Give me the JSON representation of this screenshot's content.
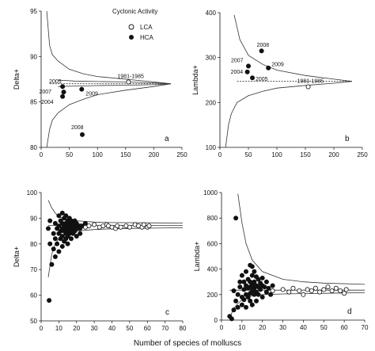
{
  "figure": {
    "xlabel": "Number of species of molluscs",
    "legend": {
      "title": "Cyclonic Activity",
      "entries": [
        {
          "label": "LCA",
          "marker": "open-circle"
        },
        {
          "label": "HCA",
          "marker": "filled-circle"
        }
      ]
    }
  },
  "chart_data": [
    {
      "panel": "a",
      "type": "scatter",
      "ylabel": "Delta+",
      "xlim": [
        0,
        250
      ],
      "ylim": [
        80,
        95
      ],
      "xticks": [
        0,
        50,
        100,
        150,
        200,
        250
      ],
      "yticks": [
        80,
        85,
        90,
        95
      ],
      "mean_line": 87.0,
      "funnel": {
        "upper": [
          [
            10,
            95
          ],
          [
            15,
            91.2
          ],
          [
            20,
            90.2
          ],
          [
            30,
            89.5
          ],
          [
            50,
            88.6
          ],
          [
            75,
            88.1
          ],
          [
            100,
            87.8
          ],
          [
            150,
            87.5
          ],
          [
            200,
            87.2
          ],
          [
            230,
            87.0
          ]
        ],
        "lower": [
          [
            10,
            80
          ],
          [
            15,
            82.0
          ],
          [
            20,
            83.0
          ],
          [
            30,
            83.8
          ],
          [
            50,
            84.7
          ],
          [
            75,
            85.3
          ],
          [
            100,
            85.8
          ],
          [
            150,
            86.3
          ],
          [
            200,
            86.7
          ],
          [
            230,
            87.0
          ]
        ],
        "upper_inner": [
          [
            30,
            87.4
          ],
          [
            60,
            87.3
          ],
          [
            100,
            87.25
          ],
          [
            150,
            87.2
          ],
          [
            200,
            87.1
          ],
          [
            230,
            87.0
          ]
        ],
        "lower_inner": [
          [
            30,
            86.7
          ],
          [
            60,
            86.75
          ],
          [
            100,
            86.8
          ],
          [
            150,
            86.85
          ],
          [
            200,
            86.9
          ],
          [
            230,
            87.0
          ]
        ]
      },
      "series": [
        {
          "name": "HCA",
          "points": [
            {
              "x": 38,
              "y": 86.7,
              "label": "2005"
            },
            {
              "x": 40,
              "y": 86.1,
              "label": "2007"
            },
            {
              "x": 38,
              "y": 85.6,
              "label": "2004"
            },
            {
              "x": 72,
              "y": 86.4,
              "label": "2009"
            },
            {
              "x": 73,
              "y": 81.4,
              "label": "2008"
            }
          ]
        },
        {
          "name": "LCA",
          "points": [
            {
              "x": 155,
              "y": 87.2,
              "label": "1981-1985"
            }
          ]
        }
      ]
    },
    {
      "panel": "b",
      "type": "scatter",
      "ylabel": "Lambda+",
      "xlim": [
        0,
        250
      ],
      "ylim": [
        100,
        400
      ],
      "xticks": [
        0,
        50,
        100,
        150,
        200,
        250
      ],
      "yticks": [
        100,
        200,
        300,
        400
      ],
      "mean_line": 247,
      "funnel": {
        "upper": [
          [
            25,
            395
          ],
          [
            35,
            340
          ],
          [
            50,
            305
          ],
          [
            75,
            285
          ],
          [
            100,
            272
          ],
          [
            150,
            260
          ],
          [
            200,
            252
          ],
          [
            232,
            247
          ]
        ],
        "lower": [
          [
            10,
            100
          ],
          [
            15,
            150
          ],
          [
            20,
            175
          ],
          [
            30,
            200
          ],
          [
            50,
            215
          ],
          [
            75,
            225
          ],
          [
            100,
            232
          ],
          [
            150,
            238
          ],
          [
            200,
            243
          ],
          [
            232,
            247
          ]
        ]
      },
      "series": [
        {
          "name": "HCA",
          "points": [
            {
              "x": 73,
              "y": 315,
              "label": "2008"
            },
            {
              "x": 50,
              "y": 281,
              "label": "2007"
            },
            {
              "x": 85,
              "y": 277,
              "label": "2009"
            },
            {
              "x": 48,
              "y": 268,
              "label": "2004"
            },
            {
              "x": 57,
              "y": 255,
              "label": "2005"
            }
          ]
        },
        {
          "name": "LCA",
          "points": [
            {
              "x": 155,
              "y": 235,
              "label": "1981-1985"
            }
          ]
        }
      ]
    },
    {
      "panel": "c",
      "type": "scatter",
      "ylabel": "Delta+",
      "xlim": [
        0,
        80
      ],
      "ylim": [
        50,
        100
      ],
      "xticks": [
        0,
        10,
        20,
        30,
        40,
        50,
        60,
        70,
        80
      ],
      "yticks": [
        50,
        60,
        70,
        80,
        90,
        100
      ],
      "funnel": {
        "upper": [
          [
            4,
            97
          ],
          [
            6,
            94
          ],
          [
            8,
            92
          ],
          [
            10,
            90.5
          ],
          [
            15,
            89.5
          ],
          [
            20,
            89
          ],
          [
            30,
            88.5
          ],
          [
            40,
            88.3
          ],
          [
            60,
            88.2
          ],
          [
            80,
            88.1
          ]
        ],
        "lower": [
          [
            4,
            67
          ],
          [
            6,
            76
          ],
          [
            8,
            80
          ],
          [
            10,
            82
          ],
          [
            15,
            84
          ],
          [
            20,
            85
          ],
          [
            30,
            85.6
          ],
          [
            40,
            85.9
          ],
          [
            60,
            86.1
          ],
          [
            80,
            86.3
          ]
        ],
        "mean": [
          [
            4,
            87.2
          ],
          [
            80,
            87.2
          ]
        ]
      },
      "series": [
        {
          "name": "LCA",
          "points": [
            [
              20,
              86
            ],
            [
              22,
              87
            ],
            [
              25,
              86.5
            ],
            [
              27,
              87
            ],
            [
              30,
              87.5
            ],
            [
              33,
              86.5
            ],
            [
              35,
              87
            ],
            [
              37,
              87.5
            ],
            [
              38,
              87
            ],
            [
              40,
              86.5
            ],
            [
              42,
              86
            ],
            [
              43,
              87
            ],
            [
              45,
              86.5
            ],
            [
              48,
              87
            ],
            [
              50,
              86.5
            ],
            [
              53,
              87.5
            ],
            [
              55,
              87
            ],
            [
              57,
              86.5
            ],
            [
              58,
              87.5
            ],
            [
              60,
              86.5
            ],
            [
              61,
              87
            ]
          ]
        },
        {
          "name": "HCA",
          "points": [
            [
              4,
              86
            ],
            [
              4.5,
              58
            ],
            [
              5,
              89
            ],
            [
              5,
              80
            ],
            [
              6,
              72
            ],
            [
              7,
              84
            ],
            [
              7,
              78
            ],
            [
              8,
              88
            ],
            [
              8,
              82
            ],
            [
              8,
              75
            ],
            [
              9,
              86
            ],
            [
              9,
              80
            ],
            [
              10,
              91
            ],
            [
              10,
              87
            ],
            [
              10,
              84
            ],
            [
              10,
              77
            ],
            [
              11,
              89
            ],
            [
              11,
              85
            ],
            [
              11,
              82
            ],
            [
              12,
              92
            ],
            [
              12,
              88
            ],
            [
              12,
              86
            ],
            [
              12,
              83
            ],
            [
              12,
              79
            ],
            [
              13,
              90
            ],
            [
              13,
              87
            ],
            [
              13,
              85
            ],
            [
              13,
              81
            ],
            [
              14,
              91
            ],
            [
              14,
              88
            ],
            [
              14,
              86
            ],
            [
              14,
              84
            ],
            [
              14,
              82
            ],
            [
              15,
              89
            ],
            [
              15,
              87
            ],
            [
              15,
              85
            ],
            [
              15,
              83
            ],
            [
              15,
              80
            ],
            [
              16,
              90
            ],
            [
              16,
              88
            ],
            [
              16,
              86
            ],
            [
              16,
              84
            ],
            [
              17,
              89
            ],
            [
              17,
              87
            ],
            [
              17,
              85
            ],
            [
              17,
              82
            ],
            [
              18,
              88
            ],
            [
              18,
              86
            ],
            [
              18,
              84
            ],
            [
              19,
              89
            ],
            [
              19,
              87
            ],
            [
              19,
              85
            ],
            [
              20,
              88
            ],
            [
              20,
              86
            ],
            [
              20,
              83
            ],
            [
              21,
              87
            ],
            [
              22,
              86
            ],
            [
              22,
              84
            ],
            [
              23,
              87
            ],
            [
              25,
              88
            ]
          ]
        }
      ]
    },
    {
      "panel": "d",
      "type": "scatter",
      "ylabel": "Lambda+",
      "xlim": [
        0,
        70
      ],
      "ylim": [
        0,
        1000
      ],
      "xticks": [
        0,
        10,
        20,
        30,
        40,
        50,
        60,
        70
      ],
      "yticks": [
        0,
        200,
        400,
        600,
        800,
        1000
      ],
      "funnel": {
        "upper": [
          [
            8,
            990
          ],
          [
            10,
            760
          ],
          [
            12,
            600
          ],
          [
            15,
            470
          ],
          [
            20,
            380
          ],
          [
            30,
            320
          ],
          [
            40,
            300
          ],
          [
            50,
            290
          ],
          [
            70,
            280
          ]
        ],
        "lower": [
          [
            4,
            20
          ],
          [
            6,
            90
          ],
          [
            8,
            130
          ],
          [
            10,
            160
          ],
          [
            15,
            190
          ],
          [
            20,
            200
          ],
          [
            30,
            205
          ],
          [
            50,
            210
          ],
          [
            70,
            215
          ]
        ],
        "mean": [
          [
            4,
            235
          ],
          [
            70,
            235
          ]
        ]
      },
      "series": [
        {
          "name": "LCA",
          "points": [
            [
              25,
              230
            ],
            [
              30,
              240
            ],
            [
              33,
              220
            ],
            [
              35,
              250
            ],
            [
              38,
              230
            ],
            [
              40,
              200
            ],
            [
              42,
              240
            ],
            [
              44,
              230
            ],
            [
              46,
              250
            ],
            [
              48,
              220
            ],
            [
              50,
              240
            ],
            [
              52,
              260
            ],
            [
              54,
              230
            ],
            [
              56,
              250
            ],
            [
              58,
              230
            ],
            [
              60,
              210
            ],
            [
              61,
              240
            ]
          ]
        },
        {
          "name": "HCA",
          "points": [
            [
              4,
              30
            ],
            [
              5,
              10
            ],
            [
              6,
              80
            ],
            [
              6,
              230
            ],
            [
              7,
              800
            ],
            [
              7,
              150
            ],
            [
              8,
              100
            ],
            [
              8,
              200
            ],
            [
              9,
              300
            ],
            [
              9,
              260
            ],
            [
              10,
              180
            ],
            [
              10,
              120
            ],
            [
              10,
              350
            ],
            [
              11,
              240
            ],
            [
              11,
              300
            ],
            [
              11,
              160
            ],
            [
              12,
              270
            ],
            [
              12,
              200
            ],
            [
              12,
              380
            ],
            [
              12,
              100
            ],
            [
              13,
              320
            ],
            [
              13,
              250
            ],
            [
              13,
              180
            ],
            [
              14,
              430
            ],
            [
              14,
              300
            ],
            [
              14,
              260
            ],
            [
              14,
              210
            ],
            [
              14,
              150
            ],
            [
              15,
              420
            ],
            [
              15,
              350
            ],
            [
              15,
              280
            ],
            [
              15,
              230
            ],
            [
              15,
              120
            ],
            [
              16,
              380
            ],
            [
              16,
              300
            ],
            [
              16,
              250
            ],
            [
              16,
              200
            ],
            [
              17,
              340
            ],
            [
              17,
              270
            ],
            [
              17,
              220
            ],
            [
              17,
              150
            ],
            [
              18,
              320
            ],
            [
              18,
              260
            ],
            [
              18,
              200
            ],
            [
              19,
              290
            ],
            [
              19,
              240
            ],
            [
              20,
              330
            ],
            [
              20,
              270
            ],
            [
              20,
              180
            ],
            [
              21,
              260
            ],
            [
              22,
              300
            ],
            [
              22,
              220
            ],
            [
              23,
              250
            ],
            [
              24,
              200
            ],
            [
              25,
              270
            ]
          ]
        }
      ]
    }
  ]
}
